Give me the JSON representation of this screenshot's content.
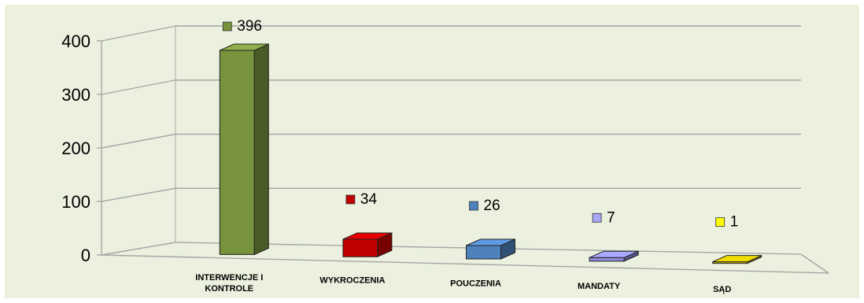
{
  "chart_data": {
    "type": "bar",
    "title": "",
    "xlabel": "",
    "ylabel": "",
    "ylim": [
      0,
      400
    ],
    "y_ticks": [
      0,
      100,
      200,
      300,
      400
    ],
    "grid": true,
    "style": "3d-column",
    "categories": [
      [
        "INTERWENCJE I",
        "KONTROLE"
      ],
      [
        "WYKROCZENIA"
      ],
      [
        "POUCZENIA"
      ],
      [
        "MANDATY"
      ],
      [
        "SĄD"
      ]
    ],
    "values": [
      396,
      34,
      26,
      7,
      1
    ],
    "colors": [
      "#77933c",
      "#c00000",
      "#4f81bd",
      "#8e8cd8",
      "#c9b800"
    ],
    "legend_marker_colors": [
      "#77933c",
      "#c00000",
      "#4f81bd",
      "#a9a6f5",
      "#ffff00"
    ],
    "data_labels": [
      "396",
      "34",
      "26",
      "7",
      "1"
    ]
  },
  "colors": {
    "background": "#ebf1de",
    "gridline": "#a6a6a6"
  }
}
